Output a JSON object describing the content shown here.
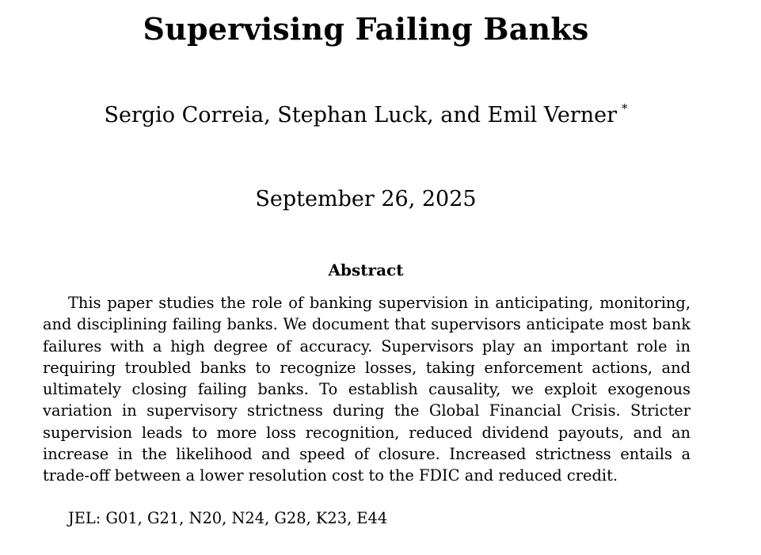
{
  "paper": {
    "title": "Supervising Failing Banks",
    "authors": "Sergio Correia, Stephan Luck, and Emil Verner",
    "author_footnote_mark": "*",
    "date": "September 26, 2025",
    "abstract_heading": "Abstract",
    "abstract_text": "This paper studies the role of banking supervision in anticipating, monitoring, and disciplining failing banks. We document that supervisors anticipate most bank failures with a high degree of accuracy. Supervisors play an important role in requiring troubled banks to recognize losses, taking enforcement actions, and ultimately closing failing banks. To establish causality, we exploit exogenous variation in supervisory strictness during the Global Financial Crisis. Stricter supervision leads to more loss recognition, reduced dividend payouts, and an increase in the likelihood and speed of closure. Increased strictness entails a trade-off between a lower resolution cost to the FDIC and reduced credit.",
    "jel": "JEL: G01, G21, N20, N24, G28, K23, E44"
  }
}
